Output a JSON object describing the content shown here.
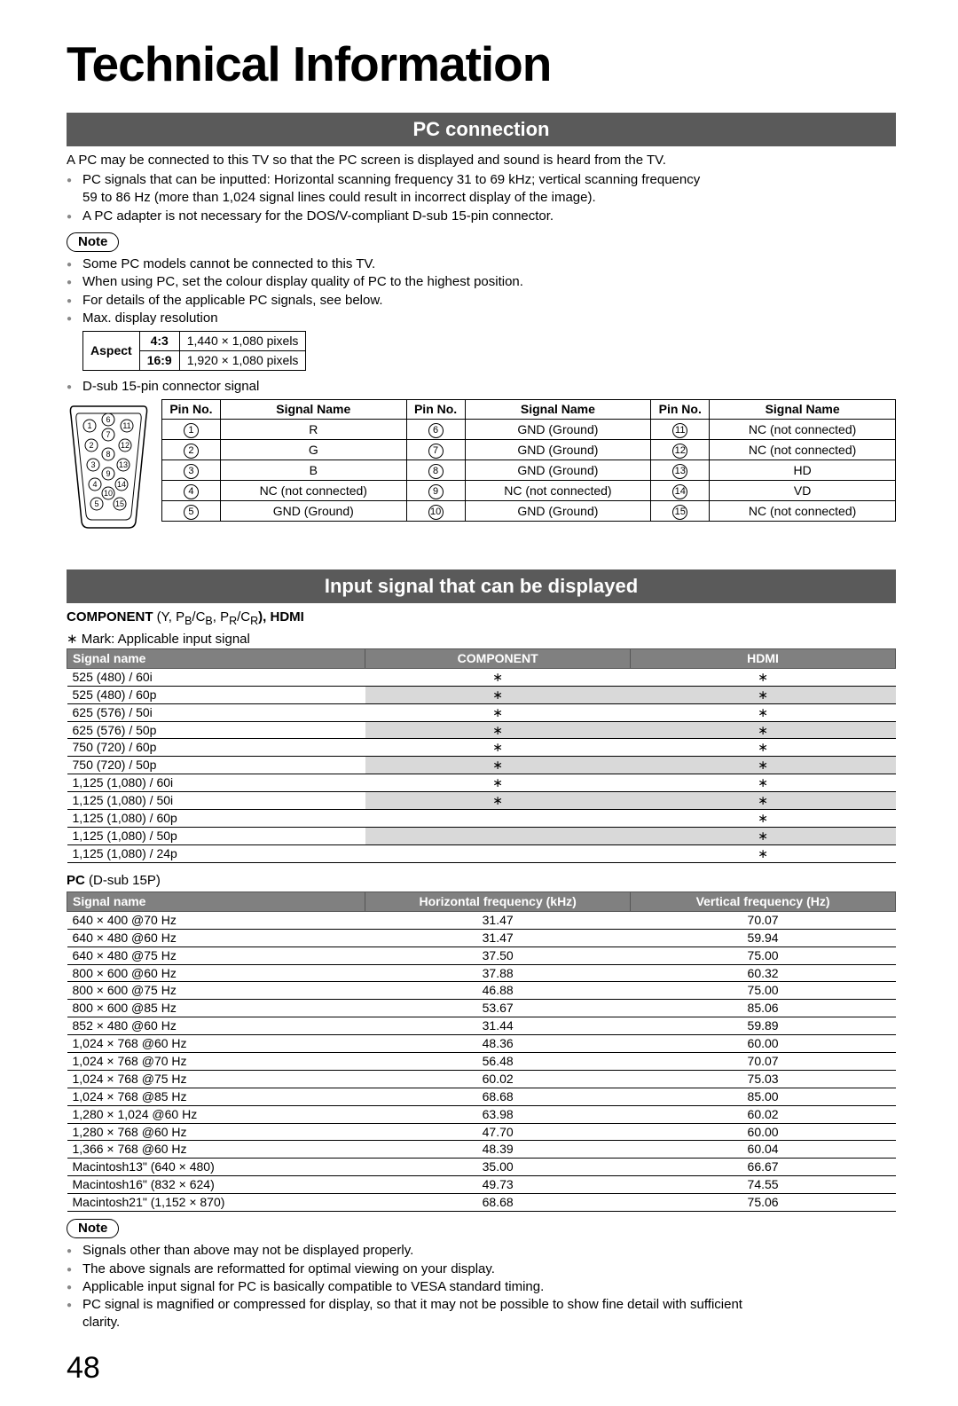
{
  "title": "Technical Information",
  "page_number": "48",
  "section1": {
    "heading": "PC connection",
    "intro": "A PC may be connected to this TV so that the PC screen is displayed and sound is heard from the TV.",
    "b1": "PC signals that can be inputted: Horizontal scanning frequency 31 to 69 kHz; vertical scanning frequency",
    "b1_cont": "59 to 86 Hz (more than 1,024 signal lines could result in incorrect display of the image).",
    "b2": "A PC adapter is not necessary for the DOS/V-compliant D-sub 15-pin connector.",
    "note_label": "Note",
    "n1": "Some PC models cannot be connected to this TV.",
    "n2": "When using PC, set the colour display quality of PC to the highest position.",
    "n3": "For details of the applicable PC signals, see below.",
    "n4": "Max. display resolution",
    "aspect_table": {
      "header": "Aspect",
      "r1a": "4:3",
      "r1b": "1,440 × 1,080 pixels",
      "r2a": "16:9",
      "r2b": "1,920 × 1,080 pixels"
    },
    "n5": "D-sub 15-pin connector signal",
    "pin_table": {
      "h_pin": "Pin No.",
      "h_sig": "Signal Name",
      "rows": [
        [
          "1",
          "R",
          "6",
          "GND (Ground)",
          "11",
          "NC (not connected)"
        ],
        [
          "2",
          "G",
          "7",
          "GND (Ground)",
          "12",
          "NC (not connected)"
        ],
        [
          "3",
          "B",
          "8",
          "GND (Ground)",
          "13",
          "HD"
        ],
        [
          "4",
          "NC (not connected)",
          "9",
          "NC (not connected)",
          "14",
          "VD"
        ],
        [
          "5",
          "GND (Ground)",
          "10",
          "GND (Ground)",
          "15",
          "NC (not connected)"
        ]
      ]
    }
  },
  "section2": {
    "heading": "Input signal that can be displayed",
    "component_label_a": "COMPONENT",
    "component_label_b": " (Y, P",
    "component_label_c": ", P",
    "component_label_d": "), HDMI",
    "sub_b": "B",
    "sub_c": "/C",
    "sub_r": "R",
    "mark_note": "∗ Mark: Applicable input signal",
    "sig_headers": [
      "Signal name",
      "COMPONENT",
      "HDMI"
    ],
    "sig_rows": [
      {
        "name": "525 (480) / 60i",
        "c": "∗",
        "h": "∗",
        "shade": false
      },
      {
        "name": "525 (480) / 60p",
        "c": "∗",
        "h": "∗",
        "shade": true
      },
      {
        "name": "625 (576) / 50i",
        "c": "∗",
        "h": "∗",
        "shade": false
      },
      {
        "name": "625 (576) / 50p",
        "c": "∗",
        "h": "∗",
        "shade": true
      },
      {
        "name": "750 (720) / 60p",
        "c": "∗",
        "h": "∗",
        "shade": false
      },
      {
        "name": "750 (720) / 50p",
        "c": "∗",
        "h": "∗",
        "shade": true
      },
      {
        "name": "1,125 (1,080) / 60i",
        "c": "∗",
        "h": "∗",
        "shade": false
      },
      {
        "name": "1,125 (1,080) / 50i",
        "c": "∗",
        "h": "∗",
        "shade": true
      },
      {
        "name": "1,125 (1,080) / 60p",
        "c": "",
        "h": "∗",
        "shade": false
      },
      {
        "name": "1,125 (1,080) / 50p",
        "c": "",
        "h": "∗",
        "shade": true
      },
      {
        "name": "1,125 (1,080) / 24p",
        "c": "",
        "h": "∗",
        "shade": false
      }
    ],
    "pc_label_a": "PC",
    "pc_label_b": " (D-sub 15P)",
    "pc_headers": [
      "Signal name",
      "Horizontal frequency (kHz)",
      "Vertical frequency (Hz)"
    ],
    "pc_rows": [
      [
        "640 × 400 @70 Hz",
        "31.47",
        "70.07"
      ],
      [
        "640 × 480 @60 Hz",
        "31.47",
        "59.94"
      ],
      [
        "640 × 480 @75 Hz",
        "37.50",
        "75.00"
      ],
      [
        "800 × 600 @60 Hz",
        "37.88",
        "60.32"
      ],
      [
        "800 × 600 @75 Hz",
        "46.88",
        "75.00"
      ],
      [
        "800 × 600 @85 Hz",
        "53.67",
        "85.06"
      ],
      [
        "852 × 480 @60 Hz",
        "31.44",
        "59.89"
      ],
      [
        "1,024 × 768 @60 Hz",
        "48.36",
        "60.00"
      ],
      [
        "1,024 × 768 @70 Hz",
        "56.48",
        "70.07"
      ],
      [
        "1,024 × 768 @75 Hz",
        "60.02",
        "75.03"
      ],
      [
        "1,024 × 768 @85 Hz",
        "68.68",
        "85.00"
      ],
      [
        "1,280 × 1,024 @60 Hz",
        "63.98",
        "60.02"
      ],
      [
        "1,280 × 768 @60 Hz",
        "47.70",
        "60.00"
      ],
      [
        "1,366 × 768 @60 Hz",
        "48.39",
        "60.04"
      ],
      [
        "Macintosh13\" (640 × 480)",
        "35.00",
        "66.67"
      ],
      [
        "Macintosh16\" (832 × 624)",
        "49.73",
        "74.55"
      ],
      [
        "Macintosh21\" (1,152 × 870)",
        "68.68",
        "75.06"
      ]
    ],
    "note_label": "Note",
    "fn1": "Signals other than above may not be displayed properly.",
    "fn2": "The above signals are reformatted for optimal viewing on your display.",
    "fn3": "Applicable input signal for PC is basically compatible to VESA standard timing.",
    "fn4": "PC signal is magnified or compressed for display, so that it may not be possible to show fine detail with sufficient",
    "fn4_cont": "clarity."
  }
}
